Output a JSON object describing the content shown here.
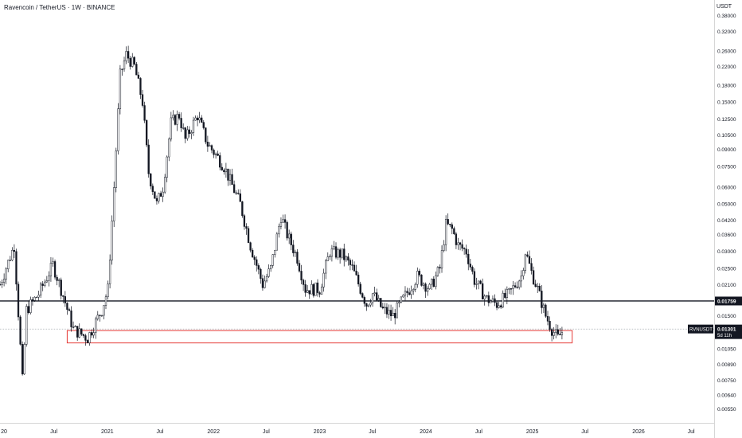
{
  "header": {
    "title": "Ravencoin / TetherUS · 1W · BINANCE"
  },
  "axis": {
    "currency": "USDT"
  },
  "colors": {
    "up": "#131722",
    "down": "#131722",
    "level": "#131722",
    "zone": "#e53935",
    "current_line": "#9aa0a6"
  },
  "chart_data": {
    "type": "candlestick",
    "scale": "log",
    "y_ticks": [
      "0.38000",
      "0.32000",
      "0.26000",
      "0.22000",
      "0.18000",
      "0.15000",
      "0.12500",
      "0.10500",
      "0.09000",
      "0.07500",
      "0.06000",
      "0.05000",
      "0.04200",
      "0.03600",
      "0.03000",
      "0.02500",
      "0.02100",
      "0.01500",
      "0.01050",
      "0.00890",
      "0.00750",
      "0.00640",
      "0.00550"
    ],
    "x_ticks": [
      "20",
      "Jul",
      "2021",
      "Jul",
      "2022",
      "Jul",
      "2023",
      "Jul",
      "2024",
      "Jul",
      "2025",
      "Jul",
      "2026",
      "Jul"
    ],
    "x_tick_dates": [
      "2020-01-01",
      "2020-07-01",
      "2021-01-01",
      "2021-07-01",
      "2022-01-01",
      "2022-07-01",
      "2023-01-01",
      "2023-07-01",
      "2024-01-01",
      "2024-07-01",
      "2025-01-01",
      "2025-07-01",
      "2026-01-01",
      "2026-07-01"
    ],
    "ylim": [
      0.0049,
      0.42
    ],
    "date_range": [
      "2019-12-29",
      "2026-09-18"
    ],
    "horizontal_level": {
      "value": 0.01759,
      "label": "0.01759"
    },
    "current_price": {
      "value": 0.01301,
      "symbol": "RVNUSDT",
      "label": "0.01301",
      "countdown": "5d 11h"
    },
    "support_zone": {
      "start": "2020-08-16",
      "end": "2025-05-18",
      "low": 0.0112,
      "high": 0.0128
    },
    "anchors": [
      [
        "2019-12-29",
        0.021
      ],
      [
        "2020-02-16",
        0.032
      ],
      [
        "2020-03-15",
        0.0075
      ],
      [
        "2020-03-29",
        0.016
      ],
      [
        "2020-05-10",
        0.019
      ],
      [
        "2020-06-28",
        0.026
      ],
      [
        "2020-07-26",
        0.02
      ],
      [
        "2020-09-06",
        0.013
      ],
      [
        "2020-10-25",
        0.0118
      ],
      [
        "2020-12-13",
        0.016
      ],
      [
        "2021-01-03",
        0.02
      ],
      [
        "2021-01-24",
        0.06
      ],
      [
        "2021-02-14",
        0.2
      ],
      [
        "2021-03-07",
        0.25
      ],
      [
        "2021-04-04",
        0.22
      ],
      [
        "2021-05-02",
        0.15
      ],
      [
        "2021-05-23",
        0.07
      ],
      [
        "2021-06-20",
        0.05
      ],
      [
        "2021-07-11",
        0.06
      ],
      [
        "2021-08-08",
        0.12
      ],
      [
        "2021-09-05",
        0.13
      ],
      [
        "2021-09-26",
        0.1
      ],
      [
        "2021-11-07",
        0.13
      ],
      [
        "2021-12-12",
        0.095
      ],
      [
        "2022-01-09",
        0.085
      ],
      [
        "2022-02-06",
        0.075
      ],
      [
        "2022-03-13",
        0.058
      ],
      [
        "2022-04-03",
        0.05
      ],
      [
        "2022-05-08",
        0.032
      ],
      [
        "2022-06-19",
        0.021
      ],
      [
        "2022-07-17",
        0.025
      ],
      [
        "2022-08-21",
        0.044
      ],
      [
        "2022-09-11",
        0.036
      ],
      [
        "2022-10-16",
        0.028
      ],
      [
        "2022-11-13",
        0.02
      ],
      [
        "2023-01-01",
        0.02
      ],
      [
        "2023-02-05",
        0.03
      ],
      [
        "2023-03-19",
        0.029
      ],
      [
        "2023-04-23",
        0.025
      ],
      [
        "2023-06-11",
        0.017
      ],
      [
        "2023-07-02",
        0.019
      ],
      [
        "2023-08-06",
        0.016
      ],
      [
        "2023-09-10",
        0.015
      ],
      [
        "2023-10-15",
        0.018
      ],
      [
        "2023-12-03",
        0.023
      ],
      [
        "2024-01-14",
        0.02
      ],
      [
        "2024-02-18",
        0.025
      ],
      [
        "2024-03-10",
        0.04
      ],
      [
        "2024-03-31",
        0.038
      ],
      [
        "2024-04-21",
        0.032
      ],
      [
        "2024-05-19",
        0.03
      ],
      [
        "2024-06-16",
        0.022
      ],
      [
        "2024-07-28",
        0.018
      ],
      [
        "2024-09-01",
        0.017
      ],
      [
        "2024-10-13",
        0.019
      ],
      [
        "2024-11-24",
        0.023
      ],
      [
        "2024-12-08",
        0.03
      ],
      [
        "2024-12-29",
        0.024
      ],
      [
        "2025-01-19",
        0.02
      ],
      [
        "2025-02-16",
        0.015
      ],
      [
        "2025-03-09",
        0.013
      ],
      [
        "2025-03-30",
        0.0118
      ],
      [
        "2025-04-20",
        0.013
      ]
    ]
  }
}
